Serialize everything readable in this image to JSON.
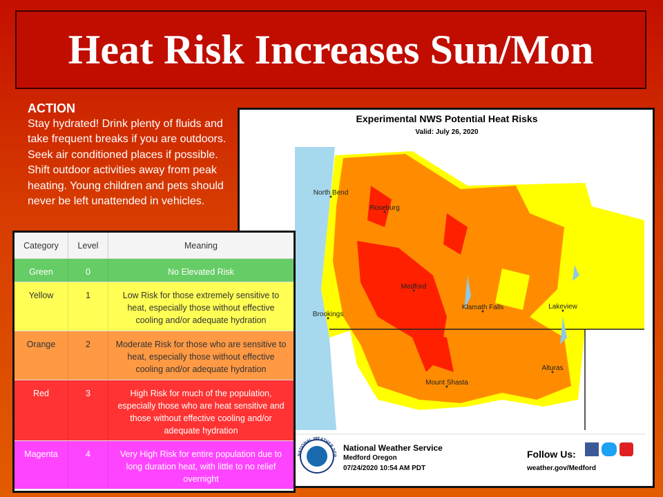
{
  "title": "Heat Risk Increases Sun/Mon",
  "action": {
    "heading": "ACTION",
    "text": "Stay hydrated! Drink plenty of fluids and take frequent breaks if you are outdoors. Seek air conditioned places if possible. Shift outdoor activities away from peak heating. Young children and pets should never be left unattended in vehicles."
  },
  "map": {
    "title": "Experimental NWS Potential Heat Risks",
    "valid": "Valid: July 26, 2020",
    "places": [
      "North Bend",
      "Roseburg",
      "Medford",
      "Klamath Falls",
      "Lakeview",
      "Brookings",
      "Mount Shasta",
      "Alturas"
    ],
    "footer": {
      "logo": "NATIONAL WEATHER SERVICE",
      "office": "National Weather Service",
      "location": "Medford Oregon",
      "timestamp": "07/24/2020 10:54 AM PDT",
      "follow": "Follow Us:",
      "url": "weather.gov/Medford"
    }
  },
  "table": {
    "header": [
      "Category",
      "Level",
      "Meaning"
    ],
    "rows": [
      [
        "Green",
        0,
        "No Elevated Risk"
      ],
      [
        "Yellow",
        1,
        "Low Risk for those extremely sensitive to heat, especially those without effective cooling and/or adequate hydration"
      ],
      [
        "Orange",
        2,
        "Moderate Risk for those who are sensitive to heat, especially those without effective cooling and/or adequate hydration"
      ],
      [
        "Red",
        3,
        "High Risk for much of the population, especially those who are heat sensitive and those without effective cooling and/or adequate hydration"
      ],
      [
        "Magenta",
        4,
        "Very High Risk for entire population due to long duration heat, with little to no relief overnight"
      ]
    ]
  }
}
